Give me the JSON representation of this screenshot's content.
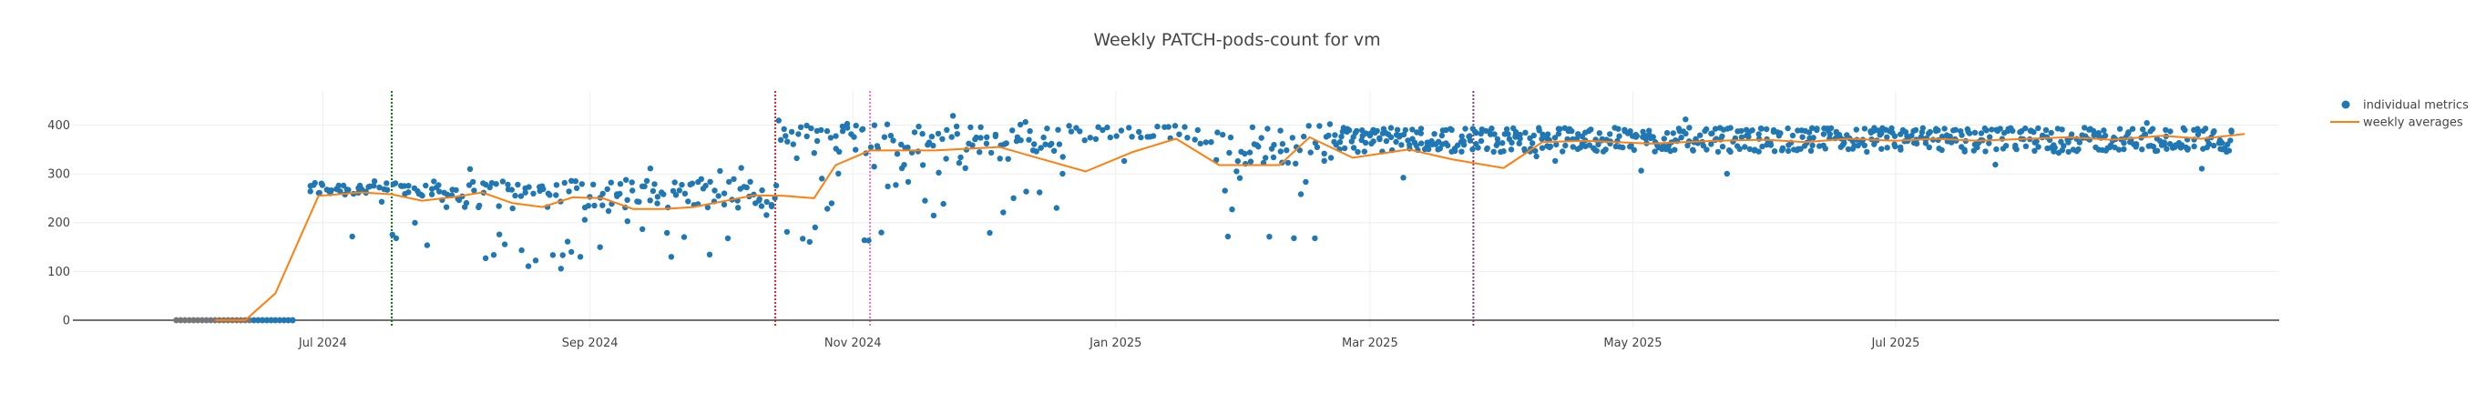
{
  "chart_data": {
    "type": "scatter",
    "title": "Weekly PATCH-pods-count for vm",
    "xlabel": "",
    "ylabel": "",
    "xlim": [
      "2024-05-04",
      "2025-09-28"
    ],
    "ylim": [
      -15,
      470
    ],
    "grid": true,
    "legend_position": "top-right",
    "x_ticks": [
      {
        "date": "2024-07-01",
        "label": "Jul 2024"
      },
      {
        "date": "2024-09-01",
        "label": "Sep 2024"
      },
      {
        "date": "2024-11-01",
        "label": "Nov 2024"
      },
      {
        "date": "2025-01-01",
        "label": "Jan 2025"
      },
      {
        "date": "2025-03-01",
        "label": "Mar 2025"
      },
      {
        "date": "2025-05-01",
        "label": "May 2025"
      },
      {
        "date": "2025-07-01",
        "label": "Jul 2025"
      }
    ],
    "y_ticks": [
      0,
      100,
      200,
      300,
      400
    ],
    "vertical_markers": [
      {
        "date": "2024-07-17",
        "color": "#008000"
      },
      {
        "date": "2024-10-14",
        "color": "#d62728"
      },
      {
        "date": "2024-11-05",
        "color": "#e377c2"
      },
      {
        "date": "2025-03-25",
        "color": "#7f3f7f"
      }
    ],
    "series": [
      {
        "name": "individual metrics",
        "kind": "markers",
        "color": "#1f77b4",
        "segments": [
          {
            "start": "2024-05-28",
            "end": "2024-06-14",
            "per_day": 4,
            "pattern": "const",
            "a": 0,
            "b": 0,
            "color": "#777777"
          },
          {
            "start": "2024-06-15",
            "end": "2024-06-24",
            "per_day": 4,
            "pattern": "const",
            "a": 0,
            "b": 0
          },
          {
            "start": "2024-06-28",
            "end": "2024-07-28",
            "per_day": 2,
            "pattern": "band",
            "a": 255,
            "b": 285,
            "outliers": 0.15,
            "olo": 140,
            "ohi": 250
          },
          {
            "start": "2024-07-29",
            "end": "2024-10-14",
            "per_day": 2,
            "pattern": "wide",
            "a": 230,
            "b": 290,
            "outliers": 0.3,
            "olo": 100,
            "ohi": 320
          },
          {
            "start": "2024-10-15",
            "end": "2024-11-14",
            "per_day": 2,
            "pattern": "wide",
            "a": 340,
            "b": 410,
            "outliers": 0.3,
            "olo": 160,
            "ohi": 430
          },
          {
            "start": "2024-11-15",
            "end": "2024-12-20",
            "per_day": 2,
            "pattern": "wide",
            "a": 330,
            "b": 400,
            "outliers": 0.3,
            "olo": 170,
            "ohi": 420
          },
          {
            "start": "2024-12-21",
            "end": "2025-01-25",
            "per_day": 1,
            "pattern": "wide",
            "a": 360,
            "b": 400,
            "outliers": 0.05,
            "olo": 200,
            "ohi": 410
          },
          {
            "start": "2025-01-26",
            "end": "2025-02-20",
            "per_day": 2,
            "pattern": "wide",
            "a": 320,
            "b": 400,
            "outliers": 0.35,
            "olo": 160,
            "ohi": 415
          },
          {
            "start": "2025-02-21",
            "end": "2025-09-17",
            "per_day": 3,
            "pattern": "band",
            "a": 345,
            "b": 395,
            "outliers": 0.04,
            "olo": 290,
            "ohi": 415
          }
        ]
      },
      {
        "name": "weekly averages",
        "kind": "line",
        "color": "#ff7f0e",
        "points": [
          [
            "2024-06-06",
            0
          ],
          [
            "2024-06-13",
            0
          ],
          [
            "2024-06-20",
            55
          ],
          [
            "2024-06-30",
            255
          ],
          [
            "2024-07-10",
            262
          ],
          [
            "2024-07-17",
            258
          ],
          [
            "2024-07-24",
            245
          ],
          [
            "2024-07-31",
            252
          ],
          [
            "2024-08-07",
            262
          ],
          [
            "2024-08-14",
            240
          ],
          [
            "2024-08-21",
            232
          ],
          [
            "2024-08-28",
            252
          ],
          [
            "2024-09-04",
            250
          ],
          [
            "2024-09-11",
            228
          ],
          [
            "2024-09-18",
            228
          ],
          [
            "2024-09-25",
            232
          ],
          [
            "2024-10-02",
            244
          ],
          [
            "2024-10-09",
            256
          ],
          [
            "2024-10-16",
            255
          ],
          [
            "2024-10-23",
            250
          ],
          [
            "2024-10-28",
            318
          ],
          [
            "2024-11-05",
            348
          ],
          [
            "2024-11-20",
            348
          ],
          [
            "2024-12-05",
            355
          ],
          [
            "2024-12-15",
            330
          ],
          [
            "2024-12-25",
            305
          ],
          [
            "2025-01-05",
            345
          ],
          [
            "2025-01-15",
            372
          ],
          [
            "2025-01-25",
            318
          ],
          [
            "2025-02-08",
            318
          ],
          [
            "2025-02-15",
            375
          ],
          [
            "2025-02-25",
            333
          ],
          [
            "2025-03-10",
            350
          ],
          [
            "2025-03-20",
            330
          ],
          [
            "2025-04-01",
            312
          ],
          [
            "2025-04-10",
            365
          ],
          [
            "2025-04-20",
            368
          ],
          [
            "2025-05-05",
            362
          ],
          [
            "2025-05-20",
            368
          ],
          [
            "2025-06-01",
            370
          ],
          [
            "2025-06-10",
            365
          ],
          [
            "2025-06-20",
            372
          ],
          [
            "2025-07-01",
            368
          ],
          [
            "2025-07-10",
            372
          ],
          [
            "2025-07-20",
            368
          ],
          [
            "2025-08-01",
            372
          ],
          [
            "2025-08-10",
            375
          ],
          [
            "2025-08-20",
            370
          ],
          [
            "2025-09-01",
            378
          ],
          [
            "2025-09-10",
            372
          ],
          [
            "2025-09-20",
            382
          ]
        ]
      }
    ]
  }
}
